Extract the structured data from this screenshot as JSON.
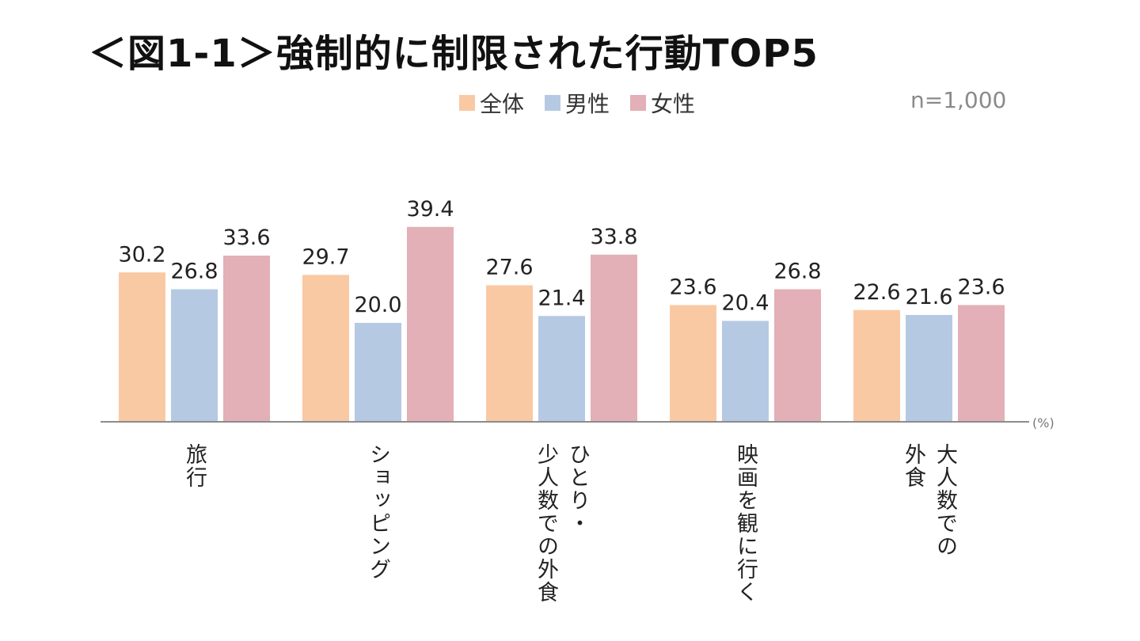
{
  "title": "＜図1-1＞強制的に制限された行動TOP5",
  "sample_size": "n=1,000",
  "unit_label": "(%)",
  "colors": {
    "total": "#f9c9a4",
    "male": "#b6c9e3",
    "female": "#e2b0b6",
    "axis": "#8c8c8c"
  },
  "chart_data": {
    "type": "bar",
    "title": "＜図1-1＞強制的に制限された行動TOP5",
    "ylabel": "(%)",
    "ylim": [
      0,
      42
    ],
    "grid": false,
    "legend": "top-center",
    "categories": [
      [
        "旅行"
      ],
      [
        "ショッピング"
      ],
      [
        "ひとり・",
        "少人数での外食"
      ],
      [
        "映画を観に行く"
      ],
      [
        "大人数での",
        "外食"
      ]
    ],
    "series": [
      {
        "name": "全体",
        "values": [
          30.2,
          29.7,
          27.6,
          23.6,
          22.6
        ]
      },
      {
        "name": "男性",
        "values": [
          26.8,
          20.0,
          21.4,
          20.4,
          21.6
        ]
      },
      {
        "name": "女性",
        "values": [
          33.6,
          39.4,
          33.8,
          26.8,
          23.6
        ]
      }
    ],
    "value_labels": [
      [
        "30.2",
        "29.7",
        "27.6",
        "23.6",
        "22.6"
      ],
      [
        "26.8",
        "20.0",
        "21.4",
        "20.4",
        "21.6"
      ],
      [
        "33.6",
        "39.4",
        "33.8",
        "26.8",
        "23.6"
      ]
    ]
  }
}
